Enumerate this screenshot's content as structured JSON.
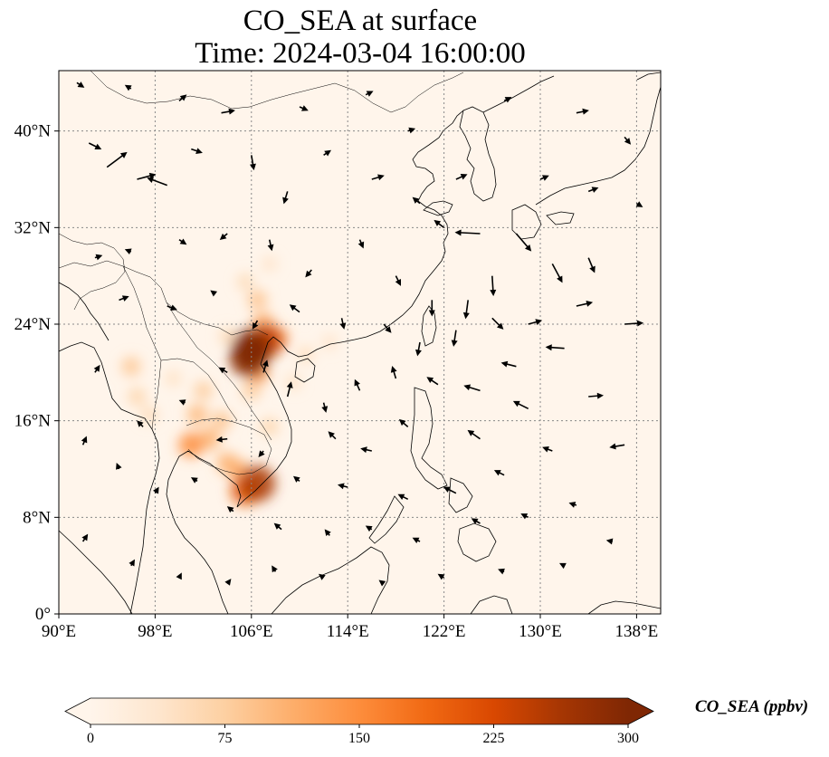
{
  "title": {
    "line1": "CO_SEA at surface",
    "line2": "Time: 2024-03-04 16:00:00"
  },
  "map": {
    "type": "map_overlay",
    "lon_range": [
      90,
      140
    ],
    "lat_range": [
      0,
      45
    ],
    "lon_ticks": [
      {
        "value": 90,
        "label": "90°E"
      },
      {
        "value": 98,
        "label": "98°E"
      },
      {
        "value": 106,
        "label": "106°E"
      },
      {
        "value": 114,
        "label": "114°E"
      },
      {
        "value": 122,
        "label": "122°E"
      },
      {
        "value": 130,
        "label": "130°E"
      },
      {
        "value": 138,
        "label": "138°E"
      }
    ],
    "lat_ticks": [
      {
        "value": 0,
        "label": "0°"
      },
      {
        "value": 8,
        "label": "8°N"
      },
      {
        "value": 16,
        "label": "16°N"
      },
      {
        "value": 24,
        "label": "24°N"
      },
      {
        "value": 32,
        "label": "32°N"
      },
      {
        "value": 40,
        "label": "40°N"
      }
    ],
    "gridlines": true,
    "background_color": "#fff5eb",
    "plumes": [
      {
        "lon": 106.0,
        "lat": 22.0,
        "value": 300
      },
      {
        "lon": 105.8,
        "lat": 21.2,
        "value": 290
      },
      {
        "lon": 107.2,
        "lat": 22.6,
        "value": 240
      },
      {
        "lon": 108.0,
        "lat": 22.8,
        "value": 150
      },
      {
        "lon": 107.0,
        "lat": 24.0,
        "value": 120
      },
      {
        "lon": 106.5,
        "lat": 26.0,
        "value": 90
      },
      {
        "lon": 105.5,
        "lat": 27.5,
        "value": 60
      },
      {
        "lon": 107.5,
        "lat": 29.0,
        "value": 45
      },
      {
        "lon": 106.5,
        "lat": 20.0,
        "value": 130
      },
      {
        "lon": 106.0,
        "lat": 18.5,
        "value": 80
      },
      {
        "lon": 107.5,
        "lat": 15.5,
        "value": 70
      },
      {
        "lon": 106.5,
        "lat": 10.8,
        "value": 260
      },
      {
        "lon": 105.5,
        "lat": 10.2,
        "value": 200
      },
      {
        "lon": 105.0,
        "lat": 11.8,
        "value": 120
      },
      {
        "lon": 104.0,
        "lat": 12.5,
        "value": 110
      },
      {
        "lon": 102.5,
        "lat": 14.5,
        "value": 110
      },
      {
        "lon": 101.0,
        "lat": 14.0,
        "value": 150
      },
      {
        "lon": 101.5,
        "lat": 16.5,
        "value": 100
      },
      {
        "lon": 103.5,
        "lat": 16.0,
        "value": 90
      },
      {
        "lon": 102.0,
        "lat": 18.5,
        "value": 80
      },
      {
        "lon": 96.0,
        "lat": 20.5,
        "value": 85
      },
      {
        "lon": 96.5,
        "lat": 18.0,
        "value": 70
      },
      {
        "lon": 97.5,
        "lat": 16.5,
        "value": 60
      },
      {
        "lon": 99.5,
        "lat": 19.5,
        "value": 50
      },
      {
        "lon": 109.5,
        "lat": 19.2,
        "value": 50
      },
      {
        "lon": 112.5,
        "lat": 22.5,
        "value": 45
      },
      {
        "lon": 104.0,
        "lat": 23.0,
        "value": 60
      },
      {
        "lon": 110.5,
        "lat": 21.5,
        "value": 55
      }
    ],
    "wind_vectors": [
      {
        "lon": 92.5,
        "lat": 39,
        "u": 1,
        "v": -0.5
      },
      {
        "lon": 94,
        "lat": 37,
        "u": 1.6,
        "v": 1.2
      },
      {
        "lon": 96.5,
        "lat": 36,
        "u": 1.5,
        "v": 0.4
      },
      {
        "lon": 99,
        "lat": 35.5,
        "u": -1.6,
        "v": 0.6
      },
      {
        "lon": 101,
        "lat": 38.5,
        "u": 0.9,
        "v": -0.3
      },
      {
        "lon": 103.5,
        "lat": 41.5,
        "u": 1.1,
        "v": 0.2
      },
      {
        "lon": 106,
        "lat": 38,
        "u": 0.2,
        "v": -1.2
      },
      {
        "lon": 109,
        "lat": 35,
        "u": -0.3,
        "v": -1
      },
      {
        "lon": 112,
        "lat": 38,
        "u": 0.6,
        "v": 0.4
      },
      {
        "lon": 116,
        "lat": 36,
        "u": 1.0,
        "v": 0.3
      },
      {
        "lon": 119,
        "lat": 40,
        "u": 0.6,
        "v": 0.2
      },
      {
        "lon": 122,
        "lat": 32,
        "u": -0.8,
        "v": 0.6
      },
      {
        "lon": 125,
        "lat": 31.5,
        "u": -2.0,
        "v": 0.1
      },
      {
        "lon": 128,
        "lat": 31.5,
        "u": 1.2,
        "v": -1.4
      },
      {
        "lon": 131,
        "lat": 29,
        "u": 0.8,
        "v": -1.5
      },
      {
        "lon": 134,
        "lat": 29.5,
        "u": 0.5,
        "v": -1.2
      },
      {
        "lon": 126,
        "lat": 28,
        "u": 0.1,
        "v": -1.6
      },
      {
        "lon": 124,
        "lat": 26,
        "u": -0.2,
        "v": -1.5
      },
      {
        "lon": 121,
        "lat": 26,
        "u": 0.0,
        "v": -1.3
      },
      {
        "lon": 118,
        "lat": 28,
        "u": 0.4,
        "v": -0.8
      },
      {
        "lon": 115,
        "lat": 31,
        "u": 0.3,
        "v": -0.7
      },
      {
        "lon": 111,
        "lat": 28.5,
        "u": -0.5,
        "v": -0.6
      },
      {
        "lon": 107.5,
        "lat": 31,
        "u": 0.2,
        "v": -0.9
      },
      {
        "lon": 104,
        "lat": 31.5,
        "u": -0.6,
        "v": -0.5
      },
      {
        "lon": 100,
        "lat": 31,
        "u": 0.6,
        "v": -0.4
      },
      {
        "lon": 96,
        "lat": 30,
        "u": -0.5,
        "v": 0.2
      },
      {
        "lon": 93,
        "lat": 29.5,
        "u": 0.6,
        "v": 0.2
      },
      {
        "lon": 95,
        "lat": 26,
        "u": 0.8,
        "v": 0.3
      },
      {
        "lon": 99,
        "lat": 25.5,
        "u": 0.8,
        "v": -0.3
      },
      {
        "lon": 103,
        "lat": 26.5,
        "u": -0.4,
        "v": 0.3
      },
      {
        "lon": 110,
        "lat": 25,
        "u": -0.8,
        "v": 0.6
      },
      {
        "lon": 113.5,
        "lat": 24.5,
        "u": 0.2,
        "v": -0.9
      },
      {
        "lon": 117,
        "lat": 24,
        "u": 0.6,
        "v": -0.7
      },
      {
        "lon": 120,
        "lat": 22.5,
        "u": -0.2,
        "v": -1.1
      },
      {
        "lon": 123,
        "lat": 23.5,
        "u": -0.2,
        "v": -1.3
      },
      {
        "lon": 126,
        "lat": 24.5,
        "u": 0.9,
        "v": -0.9
      },
      {
        "lon": 129,
        "lat": 24,
        "u": 1.1,
        "v": 0.3
      },
      {
        "lon": 133,
        "lat": 25.5,
        "u": 1.3,
        "v": 0.3
      },
      {
        "lon": 137,
        "lat": 24,
        "u": 1.5,
        "v": 0.1
      },
      {
        "lon": 132,
        "lat": 22,
        "u": -1.5,
        "v": 0.1
      },
      {
        "lon": 128,
        "lat": 20.5,
        "u": -1.2,
        "v": 0.3
      },
      {
        "lon": 125,
        "lat": 18.5,
        "u": -1.3,
        "v": 0.4
      },
      {
        "lon": 121.5,
        "lat": 19,
        "u": -0.9,
        "v": 0.6
      },
      {
        "lon": 118,
        "lat": 19.5,
        "u": -0.3,
        "v": 1.0
      },
      {
        "lon": 115,
        "lat": 18.5,
        "u": -0.4,
        "v": 0.9
      },
      {
        "lon": 112,
        "lat": 17.5,
        "u": 0.2,
        "v": -0.8
      },
      {
        "lon": 109,
        "lat": 18,
        "u": 0.3,
        "v": 1.2
      },
      {
        "lon": 113,
        "lat": 14.5,
        "u": -0.6,
        "v": 0.6
      },
      {
        "lon": 116,
        "lat": 13.5,
        "u": -0.9,
        "v": 0.2
      },
      {
        "lon": 119,
        "lat": 15.5,
        "u": -0.7,
        "v": 0.6
      },
      {
        "lon": 125,
        "lat": 14.5,
        "u": -1.0,
        "v": 0.7
      },
      {
        "lon": 129,
        "lat": 17,
        "u": -1.2,
        "v": 0.6
      },
      {
        "lon": 134,
        "lat": 18,
        "u": 1.2,
        "v": 0.1
      },
      {
        "lon": 137,
        "lat": 14,
        "u": -1.2,
        "v": -0.2
      },
      {
        "lon": 131,
        "lat": 13.5,
        "u": -0.8,
        "v": 0.3
      },
      {
        "lon": 127,
        "lat": 11.5,
        "u": -0.8,
        "v": 0.4
      },
      {
        "lon": 123,
        "lat": 10,
        "u": -1.0,
        "v": 0.5
      },
      {
        "lon": 119,
        "lat": 9.5,
        "u": -0.8,
        "v": 0.4
      },
      {
        "lon": 114,
        "lat": 10.5,
        "u": -0.8,
        "v": 0.2
      },
      {
        "lon": 110,
        "lat": 11,
        "u": -0.5,
        "v": 0.4
      },
      {
        "lon": 107,
        "lat": 13.5,
        "u": -0.4,
        "v": -0.5
      },
      {
        "lon": 104,
        "lat": 14.5,
        "u": -0.9,
        "v": -0.1
      },
      {
        "lon": 100.5,
        "lat": 17.5,
        "u": -0.5,
        "v": 0.2
      },
      {
        "lon": 97,
        "lat": 15.5,
        "u": -0.5,
        "v": 0.5
      },
      {
        "lon": 93,
        "lat": 20,
        "u": 0.4,
        "v": 0.6
      },
      {
        "lon": 92,
        "lat": 14,
        "u": 0.3,
        "v": 0.7
      },
      {
        "lon": 95,
        "lat": 12,
        "u": -0.2,
        "v": 0.5
      },
      {
        "lon": 98,
        "lat": 10,
        "u": 0.3,
        "v": 0.5
      },
      {
        "lon": 101.5,
        "lat": 11,
        "u": -0.5,
        "v": 0.3
      },
      {
        "lon": 104.5,
        "lat": 8.5,
        "u": -0.5,
        "v": 0.4
      },
      {
        "lon": 108.5,
        "lat": 7,
        "u": -0.6,
        "v": 0.5
      },
      {
        "lon": 112.5,
        "lat": 6.5,
        "u": -0.4,
        "v": 0.5
      },
      {
        "lon": 116,
        "lat": 7,
        "u": -0.5,
        "v": 0.3
      },
      {
        "lon": 120,
        "lat": 6,
        "u": -0.6,
        "v": 0.3
      },
      {
        "lon": 125,
        "lat": 7.5,
        "u": -0.7,
        "v": 0.4
      },
      {
        "lon": 129,
        "lat": 8,
        "u": -0.6,
        "v": 0.3
      },
      {
        "lon": 133,
        "lat": 9,
        "u": -0.6,
        "v": 0.2
      },
      {
        "lon": 136,
        "lat": 6,
        "u": -0.5,
        "v": 0.1
      },
      {
        "lon": 92,
        "lat": 6,
        "u": 0.4,
        "v": 0.6
      },
      {
        "lon": 96,
        "lat": 4,
        "u": 0.3,
        "v": 0.5
      },
      {
        "lon": 100,
        "lat": 3,
        "u": 0.2,
        "v": 0.4
      },
      {
        "lon": 104,
        "lat": 2.5,
        "u": 0.3,
        "v": 0.4
      },
      {
        "lon": 108,
        "lat": 3.5,
        "u": -0.3,
        "v": 0.5
      },
      {
        "lon": 112,
        "lat": 3,
        "u": -0.4,
        "v": 0.3
      },
      {
        "lon": 117,
        "lat": 2.5,
        "u": -0.4,
        "v": 0.3
      },
      {
        "lon": 122,
        "lat": 3,
        "u": -0.5,
        "v": 0.3
      },
      {
        "lon": 127,
        "lat": 3.5,
        "u": -0.5,
        "v": 0.2
      },
      {
        "lon": 132,
        "lat": 4,
        "u": -0.4,
        "v": 0.2
      },
      {
        "lon": 91.5,
        "lat": 44,
        "u": 0.6,
        "v": -0.4
      },
      {
        "lon": 96,
        "lat": 43.5,
        "u": -0.5,
        "v": 0.3
      },
      {
        "lon": 100,
        "lat": 42.5,
        "u": 0.6,
        "v": 0.5
      },
      {
        "lon": 110,
        "lat": 42,
        "u": 0.7,
        "v": -0.3
      },
      {
        "lon": 115.5,
        "lat": 43,
        "u": 0.6,
        "v": 0.3
      },
      {
        "lon": 127,
        "lat": 42.5,
        "u": 0.6,
        "v": 0.3
      },
      {
        "lon": 133,
        "lat": 41.5,
        "u": 1.0,
        "v": 0.2
      },
      {
        "lon": 137,
        "lat": 39.5,
        "u": 0.5,
        "v": -0.6
      },
      {
        "lon": 130,
        "lat": 36,
        "u": 0.7,
        "v": 0.3
      },
      {
        "lon": 134,
        "lat": 35,
        "u": 0.8,
        "v": 0.3
      },
      {
        "lon": 138,
        "lat": 34,
        "u": 0.5,
        "v": -0.3
      },
      {
        "lon": 123,
        "lat": 36,
        "u": 0.9,
        "v": 0.4
      },
      {
        "lon": 120,
        "lat": 34,
        "u": -0.6,
        "v": 0.5
      },
      {
        "lon": 106.5,
        "lat": 24.3,
        "u": -0.4,
        "v": -0.7
      },
      {
        "lon": 107,
        "lat": 20,
        "u": 0.3,
        "v": 1.0
      },
      {
        "lon": 104,
        "lat": 20,
        "u": -0.7,
        "v": 0.4
      }
    ],
    "coastline_color": "#000000",
    "grid_color": "#888888"
  },
  "colorbar": {
    "label": "CO_SEA (ppbv)",
    "vmin": 0,
    "vmax": 300,
    "ticks": [
      {
        "value": 0,
        "label": "0"
      },
      {
        "value": 75,
        "label": "75"
      },
      {
        "value": 150,
        "label": "150"
      },
      {
        "value": 225,
        "label": "225"
      },
      {
        "value": 300,
        "label": "300"
      }
    ],
    "colormap": "OrRd",
    "color_stops": [
      "#fff5eb",
      "#fee6ce",
      "#fdd0a2",
      "#fdae6b",
      "#fd8d3c",
      "#f16913",
      "#d94801",
      "#a63603",
      "#7f2704"
    ],
    "extend": "both"
  }
}
